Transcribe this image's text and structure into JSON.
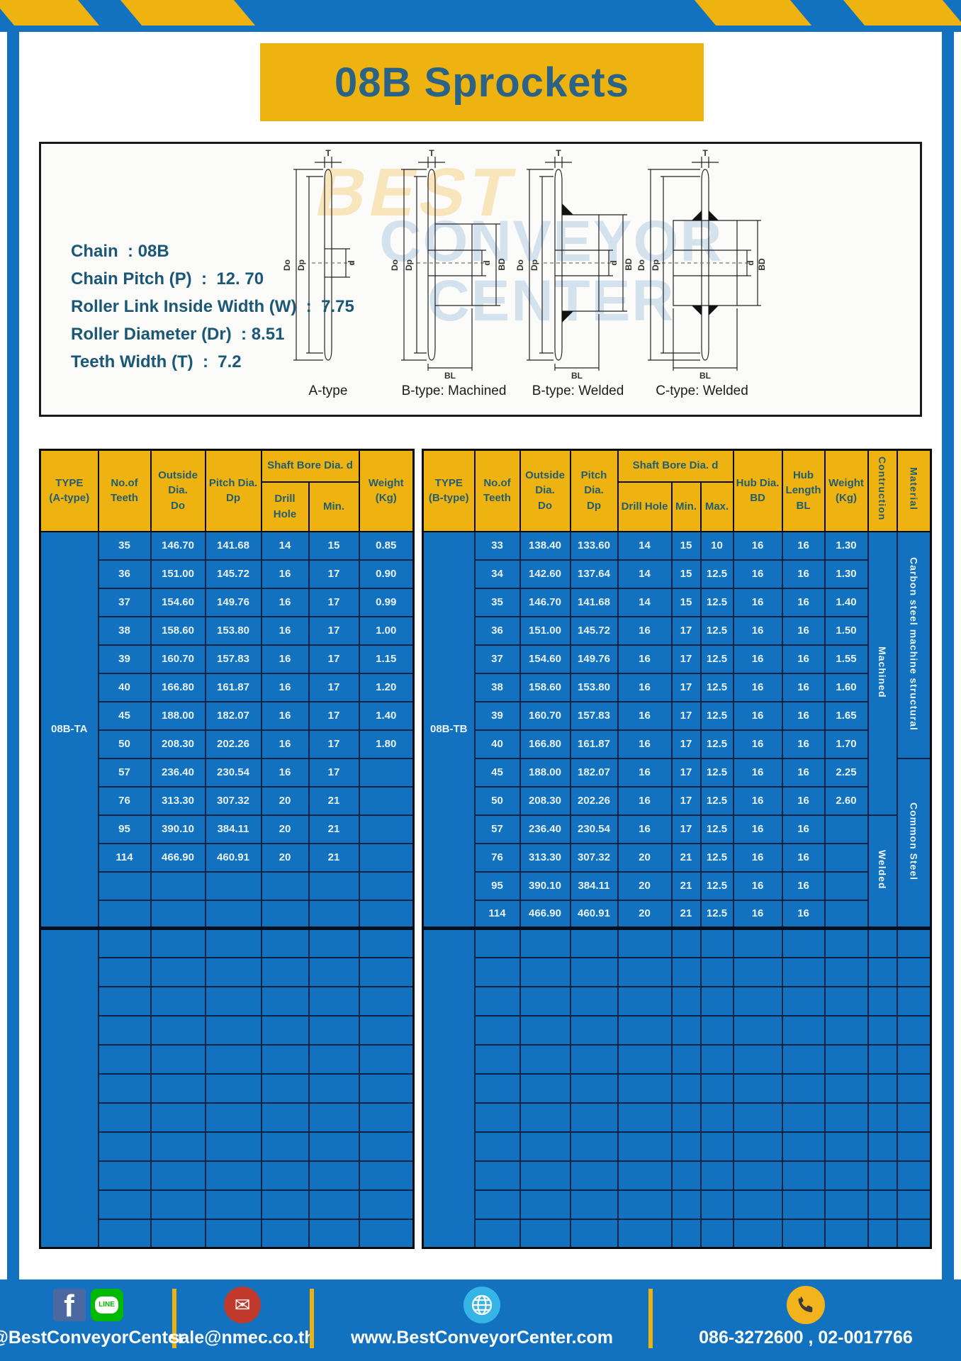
{
  "header": {
    "title": "08B Sprockets"
  },
  "colors": {
    "blue": "#1272bf",
    "yellow": "#eeb211",
    "navy": "#0d2342",
    "header_text": "#235e70",
    "title_text": "#2a6386",
    "spec_text": "#1b5876",
    "cell_text": "#e8f2fc"
  },
  "diagram": {
    "specs": [
      "Chain  : 08B",
      "Chain Pitch (P)  :  12. 70",
      "Roller Link Inside Width (W)  :  7.75",
      "Roller Diameter (Dr)  : 8.51",
      "Teeth Width (T)  :  7.2"
    ],
    "labels": [
      "A-type",
      "B-type: Machined",
      "B-type: Welded",
      "C-type: Welded"
    ],
    "dims": {
      "T": "T",
      "Do": "Do",
      "Dp": "Dp",
      "d": "d",
      "BD": "BD",
      "BL": "BL"
    },
    "watermark": [
      "BEST",
      "CONVEYOR",
      "CENTER"
    ]
  },
  "left_table": {
    "header": {
      "type": "TYPE\n(A-type)",
      "teeth": "No.of\nTeeth",
      "outside": "Outside\nDia.\nDo",
      "pitch": "Pitch Dia.\nDp",
      "shaft_bore": "Shaft Bore Dia. d",
      "drill": "Drill Hole",
      "min": "Min.",
      "weight": "Weight\n(Kg)"
    },
    "type_label": "08B-TA",
    "rows": [
      [
        "35",
        "146.70",
        "141.68",
        "14",
        "15",
        "0.85"
      ],
      [
        "36",
        "151.00",
        "145.72",
        "16",
        "17",
        "0.90"
      ],
      [
        "37",
        "154.60",
        "149.76",
        "16",
        "17",
        "0.99"
      ],
      [
        "38",
        "158.60",
        "153.80",
        "16",
        "17",
        "1.00"
      ],
      [
        "39",
        "160.70",
        "157.83",
        "16",
        "17",
        "1.15"
      ],
      [
        "40",
        "166.80",
        "161.87",
        "16",
        "17",
        "1.20"
      ],
      [
        "45",
        "188.00",
        "182.07",
        "16",
        "17",
        "1.40"
      ],
      [
        "50",
        "208.30",
        "202.26",
        "16",
        "17",
        "1.80"
      ],
      [
        "57",
        "236.40",
        "230.54",
        "16",
        "17",
        ""
      ],
      [
        "76",
        "313.30",
        "307.32",
        "20",
        "21",
        ""
      ],
      [
        "95",
        "390.10",
        "384.11",
        "20",
        "21",
        ""
      ],
      [
        "114",
        "466.90",
        "460.91",
        "20",
        "21",
        ""
      ]
    ],
    "section1_empty_rows": 2,
    "section2_empty_rows": 11
  },
  "right_table": {
    "header": {
      "type": "TYPE\n(B-type)",
      "teeth": "No.of\nTeeth",
      "outside": "Outside\nDia.\nDo",
      "pitch": "Pitch Dia.\nDp",
      "shaft_bore": "Shaft Bore Dia. d",
      "drill": "Drill Hole",
      "min": "Min.",
      "max": "Max.",
      "hub_dia": "Hub Dia.\nBD",
      "hub_len": "Hub\nLength\nBL",
      "weight": "Weight\n(Kg)",
      "construction": "Contruction",
      "material": "Material"
    },
    "type_label": "08B-TB",
    "rows": [
      [
        "33",
        "138.40",
        "133.60",
        "14",
        "15",
        "10",
        "16",
        "16",
        "1.30"
      ],
      [
        "34",
        "142.60",
        "137.64",
        "14",
        "15",
        "12.5",
        "16",
        "16",
        "1.30"
      ],
      [
        "35",
        "146.70",
        "141.68",
        "14",
        "15",
        "12.5",
        "16",
        "16",
        "1.40"
      ],
      [
        "36",
        "151.00",
        "145.72",
        "16",
        "17",
        "12.5",
        "16",
        "16",
        "1.50"
      ],
      [
        "37",
        "154.60",
        "149.76",
        "16",
        "17",
        "12.5",
        "16",
        "16",
        "1.55"
      ],
      [
        "38",
        "158.60",
        "153.80",
        "16",
        "17",
        "12.5",
        "16",
        "16",
        "1.60"
      ],
      [
        "39",
        "160.70",
        "157.83",
        "16",
        "17",
        "12.5",
        "16",
        "16",
        "1.65"
      ],
      [
        "40",
        "166.80",
        "161.87",
        "16",
        "17",
        "12.5",
        "16",
        "16",
        "1.70"
      ],
      [
        "45",
        "188.00",
        "182.07",
        "16",
        "17",
        "12.5",
        "16",
        "16",
        "2.25"
      ],
      [
        "50",
        "208.30",
        "202.26",
        "16",
        "17",
        "12.5",
        "16",
        "16",
        "2.60"
      ],
      [
        "57",
        "236.40",
        "230.54",
        "16",
        "17",
        "12.5",
        "16",
        "16",
        ""
      ],
      [
        "76",
        "313.30",
        "307.32",
        "20",
        "21",
        "12.5",
        "16",
        "16",
        ""
      ],
      [
        "95",
        "390.10",
        "384.11",
        "20",
        "21",
        "12.5",
        "16",
        "16",
        ""
      ],
      [
        "114",
        "466.90",
        "460.91",
        "20",
        "21",
        "12.5",
        "16",
        "16",
        ""
      ]
    ],
    "construction": [
      {
        "label": "Machined",
        "span": 10
      },
      {
        "label": "Welded",
        "span": 4
      }
    ],
    "material": [
      {
        "label": "Carbon steel  machine structural",
        "span": 8
      },
      {
        "label": "Common  Steel",
        "span": 6
      }
    ],
    "section2_empty_rows": 11
  },
  "footer": {
    "social_text": "@BestConveyorCenter",
    "email_text": "sale@nmec.co.th",
    "web_text": "www.BestConveyorCenter.com",
    "phone_text": "086-3272600 , 02-0017766",
    "facebook_letter": "f",
    "line_label": "LINE",
    "email_glyph": "✉"
  }
}
